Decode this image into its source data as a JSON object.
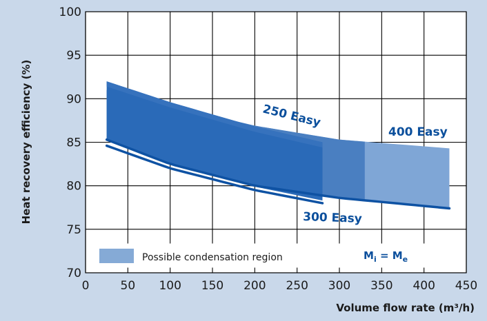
{
  "chart_data": {
    "type": "area",
    "title": "",
    "xlabel": "Volume flow rate (m³/h)",
    "ylabel": "Heat recovery efficiency (%)",
    "xlim": [
      0,
      450
    ],
    "ylim": [
      70,
      100
    ],
    "x_ticks": [
      0,
      50,
      100,
      150,
      200,
      250,
      300,
      350,
      400,
      450
    ],
    "y_ticks": [
      70,
      75,
      80,
      85,
      90,
      95,
      100
    ],
    "grid": true,
    "series": [
      {
        "name": "250 Easy",
        "color": "#2a6ab8",
        "x": [
          25,
          100,
          200,
          280
        ],
        "upper": [
          92.0,
          89.6,
          86.8,
          85.0
        ],
        "lower": [
          85.3,
          82.5,
          79.9,
          78.3
        ]
      },
      {
        "name": "300 Easy",
        "color": "#0e52a3",
        "x": [
          25,
          100,
          200,
          280
        ],
        "values": [
          84.6,
          82.0,
          79.5,
          78.0
        ]
      },
      {
        "name": "400 Easy",
        "color": "#7fa6d6",
        "x": [
          25,
          100,
          200,
          300,
          430
        ],
        "upper": [
          91.0,
          89.2,
          86.9,
          85.3,
          84.3
        ],
        "lower": [
          85.3,
          82.5,
          80.0,
          78.6,
          77.4
        ]
      }
    ],
    "condensation_region": {
      "x_from": 280,
      "x_mid": 330,
      "x_to": 430,
      "color": "#85aad6"
    },
    "annotations": {
      "label_250": "250 Easy",
      "label_300": "300 Easy",
      "label_400": "400 Easy"
    },
    "legend": {
      "swatch_color": "#85aad6",
      "text": "Possible condensation region",
      "position": "bottom"
    },
    "formula": {
      "m1": "M",
      "s1": "i",
      "eq": " = ",
      "m2": "M",
      "s2": "e"
    }
  }
}
